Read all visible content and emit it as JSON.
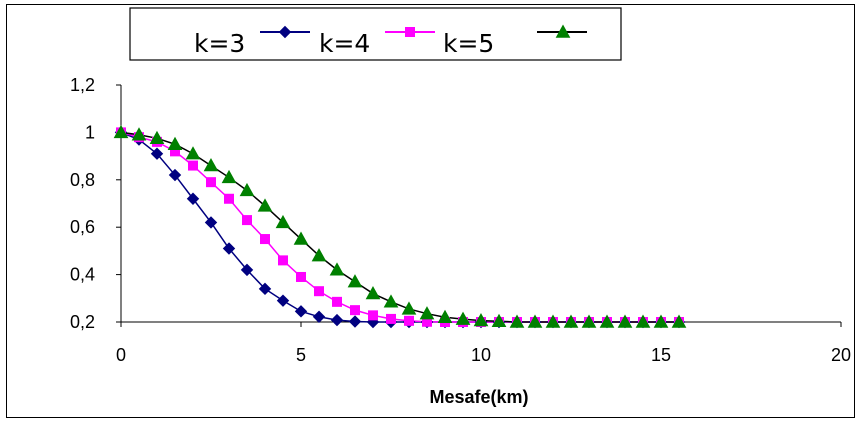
{
  "chart_data": {
    "type": "line",
    "title": "",
    "xlabel": "Mesafe(km)",
    "ylabel": "",
    "xlim": [
      0,
      20
    ],
    "ylim": [
      0.2,
      1.2
    ],
    "x_ticks": [
      "0",
      "5",
      "10",
      "15",
      "20"
    ],
    "y_ticks": [
      "0,2",
      "0,4",
      "0,6",
      "0,8",
      "1",
      "1,2"
    ],
    "grid": false,
    "legend_position": "top",
    "legend_labels": [
      "k=3",
      "k=4",
      "k=5"
    ],
    "x": [
      0,
      0.5,
      1,
      1.5,
      2,
      2.5,
      3,
      3.5,
      4,
      4.5,
      5,
      5.5,
      6,
      6.5,
      7,
      7.5,
      8,
      8.5,
      9,
      9.5,
      10,
      10.5,
      11,
      11.5,
      12,
      12.5,
      13,
      13.5,
      14,
      14.5,
      15,
      15.5
    ],
    "series": [
      {
        "marker": "diamond",
        "color": "#000080",
        "values": [
          1.0,
          0.97,
          0.91,
          0.82,
          0.72,
          0.62,
          0.51,
          0.42,
          0.34,
          0.29,
          0.245,
          0.222,
          0.208,
          0.202,
          0.2,
          0.2,
          0.2,
          0.2,
          0.2,
          0.2,
          0.2,
          0.2,
          0.2,
          0.2,
          0.2,
          0.2,
          0.2,
          0.2,
          0.2,
          0.2,
          0.2,
          0.2
        ]
      },
      {
        "marker": "square",
        "color": "#ff00ff",
        "values": [
          1.0,
          0.98,
          0.96,
          0.92,
          0.86,
          0.79,
          0.72,
          0.63,
          0.55,
          0.46,
          0.39,
          0.33,
          0.285,
          0.25,
          0.228,
          0.213,
          0.205,
          0.201,
          0.2,
          0.2,
          0.2,
          0.2,
          0.2,
          0.2,
          0.2,
          0.2,
          0.2,
          0.2,
          0.2,
          0.2,
          0.2,
          0.2
        ]
      },
      {
        "marker": "triangle",
        "color": "#008000",
        "line_color": "#000000",
        "values": [
          1.0,
          0.99,
          0.975,
          0.95,
          0.91,
          0.86,
          0.81,
          0.755,
          0.69,
          0.62,
          0.55,
          0.48,
          0.42,
          0.37,
          0.32,
          0.285,
          0.255,
          0.235,
          0.22,
          0.212,
          0.206,
          0.203,
          0.2,
          0.2,
          0.2,
          0.2,
          0.2,
          0.2,
          0.2,
          0.2,
          0.2,
          0.2
        ]
      }
    ]
  }
}
